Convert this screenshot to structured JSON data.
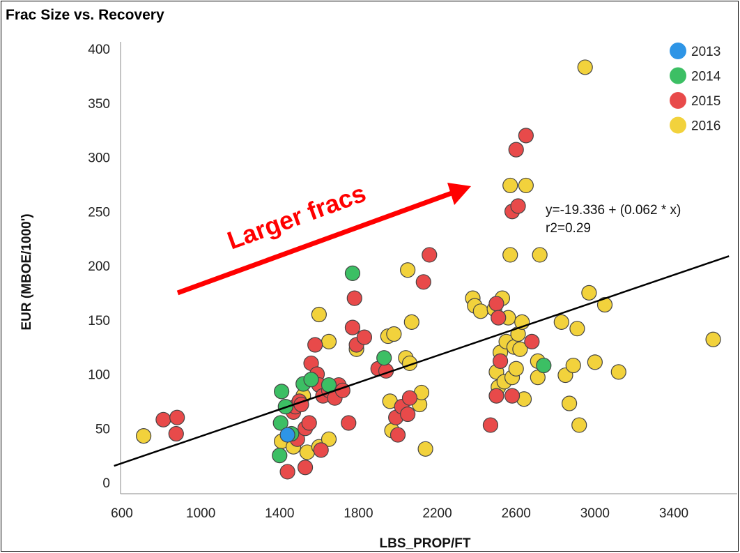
{
  "chart_data": {
    "type": "scatter",
    "title": "Frac Size vs. Recovery",
    "xlabel": "LBS_PROP/FT",
    "ylabel": "EUR (MBOE/1000')",
    "xlim": [
      560,
      3680
    ],
    "ylim": [
      -5,
      405
    ],
    "xticks": [
      600,
      1000,
      1400,
      1800,
      2200,
      2600,
      3000,
      3400
    ],
    "yticks": [
      0,
      50,
      100,
      150,
      200,
      250,
      300,
      350,
      400
    ],
    "legend_position": "top-right",
    "series": [
      {
        "name": "2013",
        "color": "#2e95e6",
        "points": [
          [
            1440,
            44
          ]
        ]
      },
      {
        "name": "2014",
        "color": "#3cbf64",
        "points": [
          [
            1410,
            84
          ],
          [
            1520,
            91
          ],
          [
            1430,
            70
          ],
          [
            1405,
            55
          ],
          [
            1400,
            25
          ],
          [
            1460,
            45
          ],
          [
            1560,
            95
          ],
          [
            1770,
            193
          ],
          [
            1930,
            115
          ],
          [
            2740,
            108
          ],
          [
            1650,
            90
          ]
        ]
      },
      {
        "name": "2015",
        "color": "#e84a4a",
        "points": [
          [
            810,
            58
          ],
          [
            880,
            60
          ],
          [
            875,
            45
          ],
          [
            1440,
            10
          ],
          [
            1530,
            14
          ],
          [
            1470,
            65
          ],
          [
            1480,
            70
          ],
          [
            1490,
            40
          ],
          [
            1500,
            75
          ],
          [
            1510,
            72
          ],
          [
            1530,
            50
          ],
          [
            1550,
            55
          ],
          [
            1560,
            110
          ],
          [
            1580,
            127
          ],
          [
            1590,
            100
          ],
          [
            1600,
            90
          ],
          [
            1610,
            30
          ],
          [
            1620,
            80
          ],
          [
            1650,
            85
          ],
          [
            1680,
            78
          ],
          [
            1700,
            90
          ],
          [
            1720,
            85
          ],
          [
            1750,
            55
          ],
          [
            1770,
            143
          ],
          [
            1780,
            170
          ],
          [
            1790,
            127
          ],
          [
            1830,
            134
          ],
          [
            1900,
            105
          ],
          [
            1940,
            103
          ],
          [
            1990,
            60
          ],
          [
            2000,
            44
          ],
          [
            2020,
            70
          ],
          [
            2050,
            63
          ],
          [
            2060,
            78
          ],
          [
            2130,
            185
          ],
          [
            2160,
            210
          ],
          [
            2470,
            53
          ],
          [
            2500,
            165
          ],
          [
            2500,
            80
          ],
          [
            2510,
            152
          ],
          [
            2520,
            112
          ],
          [
            2580,
            250
          ],
          [
            2580,
            80
          ],
          [
            2600,
            307
          ],
          [
            2610,
            255
          ],
          [
            2650,
            320
          ],
          [
            2680,
            130
          ]
        ]
      },
      {
        "name": "2016",
        "color": "#f2d23c",
        "points": [
          [
            710,
            43
          ],
          [
            1410,
            38
          ],
          [
            1470,
            33
          ],
          [
            1520,
            80
          ],
          [
            1540,
            28
          ],
          [
            1600,
            33
          ],
          [
            1600,
            155
          ],
          [
            1650,
            130
          ],
          [
            1650,
            40
          ],
          [
            1790,
            123
          ],
          [
            1950,
            135
          ],
          [
            1960,
            75
          ],
          [
            1970,
            48
          ],
          [
            1980,
            137
          ],
          [
            2040,
            115
          ],
          [
            2050,
            196
          ],
          [
            2060,
            110
          ],
          [
            2070,
            148
          ],
          [
            2110,
            72
          ],
          [
            2120,
            83
          ],
          [
            2140,
            31
          ],
          [
            2380,
            170
          ],
          [
            2390,
            163
          ],
          [
            2420,
            158
          ],
          [
            2490,
            160
          ],
          [
            2500,
            102
          ],
          [
            2510,
            88
          ],
          [
            2520,
            120
          ],
          [
            2530,
            170
          ],
          [
            2540,
            93
          ],
          [
            2550,
            130
          ],
          [
            2560,
            152
          ],
          [
            2570,
            274
          ],
          [
            2570,
            210
          ],
          [
            2580,
            97
          ],
          [
            2590,
            125
          ],
          [
            2600,
            105
          ],
          [
            2610,
            137
          ],
          [
            2620,
            123
          ],
          [
            2630,
            148
          ],
          [
            2640,
            77
          ],
          [
            2650,
            274
          ],
          [
            2710,
            112
          ],
          [
            2710,
            97
          ],
          [
            2720,
            210
          ],
          [
            2830,
            148
          ],
          [
            2850,
            99
          ],
          [
            2870,
            73
          ],
          [
            2890,
            108
          ],
          [
            2910,
            142
          ],
          [
            2920,
            53
          ],
          [
            2950,
            383
          ],
          [
            2970,
            175
          ],
          [
            3000,
            111
          ],
          [
            3050,
            164
          ],
          [
            3120,
            102
          ],
          [
            3600,
            132
          ]
        ]
      }
    ],
    "trendline": {
      "intercept": -19.336,
      "slope": 0.062,
      "color": "#000000"
    },
    "equation_lines": [
      "y=-19.336 + (0.062 * x)",
      "r2=0.29"
    ],
    "annotation": {
      "text": "Larger fracs",
      "color": "#ff0000"
    }
  }
}
